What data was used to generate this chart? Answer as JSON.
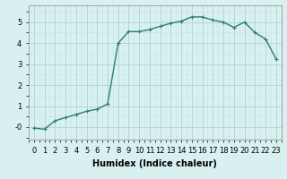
{
  "x": [
    0,
    1,
    2,
    3,
    4,
    5,
    6,
    7,
    8,
    9,
    10,
    11,
    12,
    13,
    14,
    15,
    16,
    17,
    18,
    19,
    20,
    21,
    22,
    23
  ],
  "y": [
    -0.05,
    -0.1,
    0.3,
    0.45,
    0.6,
    0.75,
    0.85,
    1.1,
    4.0,
    4.55,
    4.55,
    4.65,
    4.8,
    4.95,
    5.05,
    5.25,
    5.25,
    5.1,
    5.0,
    4.75,
    5.0,
    4.5,
    4.2,
    3.25
  ],
  "line_color": "#2e7d6e",
  "bg_color": "#d8f0f0",
  "grid_color_major": "#aed4d4",
  "grid_color_minor": "#c4e4e4",
  "xlabel": "Humidex (Indice chaleur)",
  "xlabel_fontsize": 7,
  "ylim": [
    -0.6,
    5.8
  ],
  "xlim": [
    -0.5,
    23.5
  ],
  "yticks": [
    0,
    1,
    2,
    3,
    4,
    5
  ],
  "ytick_labels": [
    "-0",
    "1",
    "2",
    "3",
    "4",
    "5"
  ],
  "xtick_labels": [
    "0",
    "1",
    "2",
    "3",
    "4",
    "5",
    "6",
    "7",
    "8",
    "9",
    "10",
    "11",
    "12",
    "13",
    "14",
    "15",
    "16",
    "17",
    "18",
    "19",
    "20",
    "21",
    "22",
    "23"
  ],
  "tick_fontsize": 6,
  "marker": "+",
  "marker_size": 3,
  "line_width": 1.0
}
